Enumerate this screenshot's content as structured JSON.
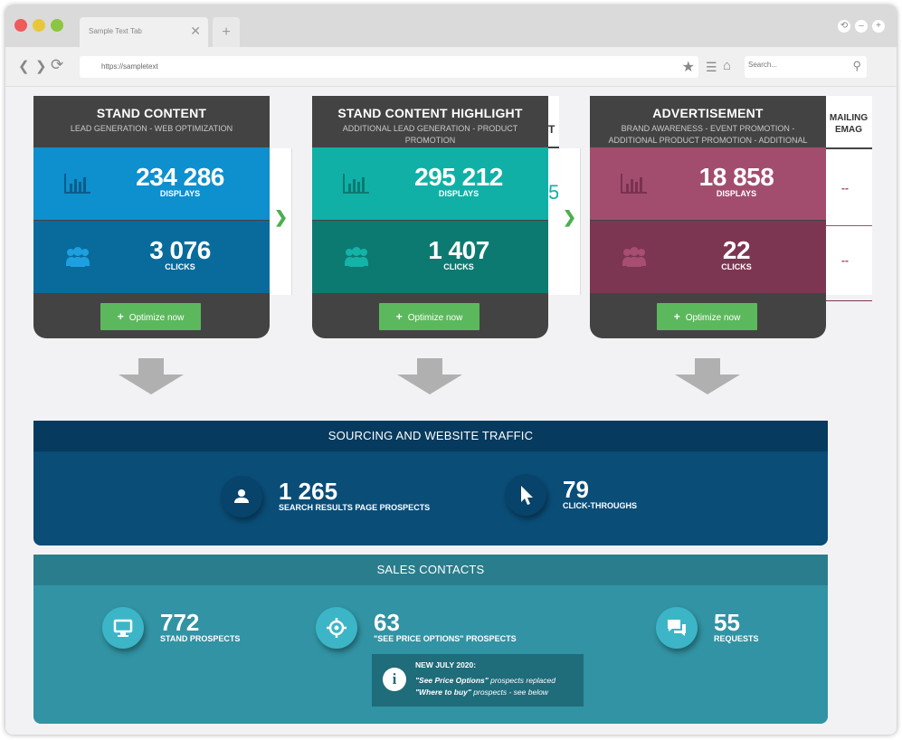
{
  "browser": {
    "tab_title": "Sample Text Tab",
    "tab_close": "✕",
    "new_tab": "+",
    "url": "https://sampletext",
    "search_placeholder": "Search...",
    "nav": {
      "back": "❮",
      "forward": "❯",
      "reload": "⟳"
    },
    "window_controls": [
      "⟲",
      "–",
      "+"
    ]
  },
  "cards": [
    {
      "title": "STAND CONTENT",
      "subtitle": "LEAD GENERATION - WEB OPTIMIZATION",
      "displays_value": "234 286",
      "displays_label": "DISPLAYS",
      "clicks_value": "3 076",
      "clicks_label": "CLICKS",
      "button_label": "Optimize now",
      "colors": {
        "top": "#0e8fce",
        "bottom": "#086b9c"
      }
    },
    {
      "title": "STAND CONTENT HIGHLIGHT",
      "subtitle": "ADDITIONAL LEAD GENERATION - PRODUCT PROMOTION",
      "displays_value": "295 212",
      "displays_label": "DISPLAYS",
      "clicks_value": "1 407",
      "clicks_label": "CLICKS",
      "button_label": "Optimize now",
      "colors": {
        "top": "#11b0a6",
        "bottom": "#0d7a71"
      }
    },
    {
      "title": "ADVERTISEMENT",
      "subtitle": "BRAND AWARENESS - EVENT PROMOTION - ADDITIONAL PRODUCT PROMOTION - ADDITIONAL LEAD GENERATION",
      "displays_value": "18 858",
      "displays_label": "DISPLAYS",
      "clicks_value": "22",
      "clicks_label": "CLICKS",
      "button_label": "Optimize now",
      "colors": {
        "top": "#a24d6e",
        "bottom": "#7c3652"
      }
    }
  ],
  "peeks": {
    "first_header_fragment": "T",
    "first_value_fragment": "5",
    "third_title_line1": "MAILING",
    "third_title_line2": "EMAG",
    "third_dash1": "--",
    "third_dash2": "--",
    "arrow": "❯"
  },
  "sourcing": {
    "title": "SOURCING AND WEBSITE TRAFFIC",
    "stats": [
      {
        "value": "1 265",
        "label": "SEARCH RESULTS PAGE PROSPECTS",
        "icon": "user-icon"
      },
      {
        "value": "79",
        "label": "CLICK-THROUGHS",
        "icon": "cursor-icon"
      }
    ],
    "colors": {
      "head": "#063a5e",
      "body": "#0a4d77"
    }
  },
  "sales": {
    "title": "SALES CONTACTS",
    "stats": [
      {
        "value": "772",
        "label": "STAND PROSPECTS",
        "icon": "monitor-icon"
      },
      {
        "value": "63",
        "label": "\"SEE PRICE OPTIONS\" PROSPECTS",
        "icon": "target-icon"
      },
      {
        "value": "55",
        "label": "REQUESTS",
        "icon": "chat-icon"
      }
    ],
    "note": {
      "title": "NEW JULY 2020:",
      "line1_em": "\"See Price Options\"",
      "line1_rest": " prospects replaced",
      "line2_em": "\"Where to buy\"",
      "line2_rest": " prospects - see below",
      "icon": "i"
    },
    "colors": {
      "head": "#2a7d8c",
      "body": "#3193a3"
    }
  }
}
